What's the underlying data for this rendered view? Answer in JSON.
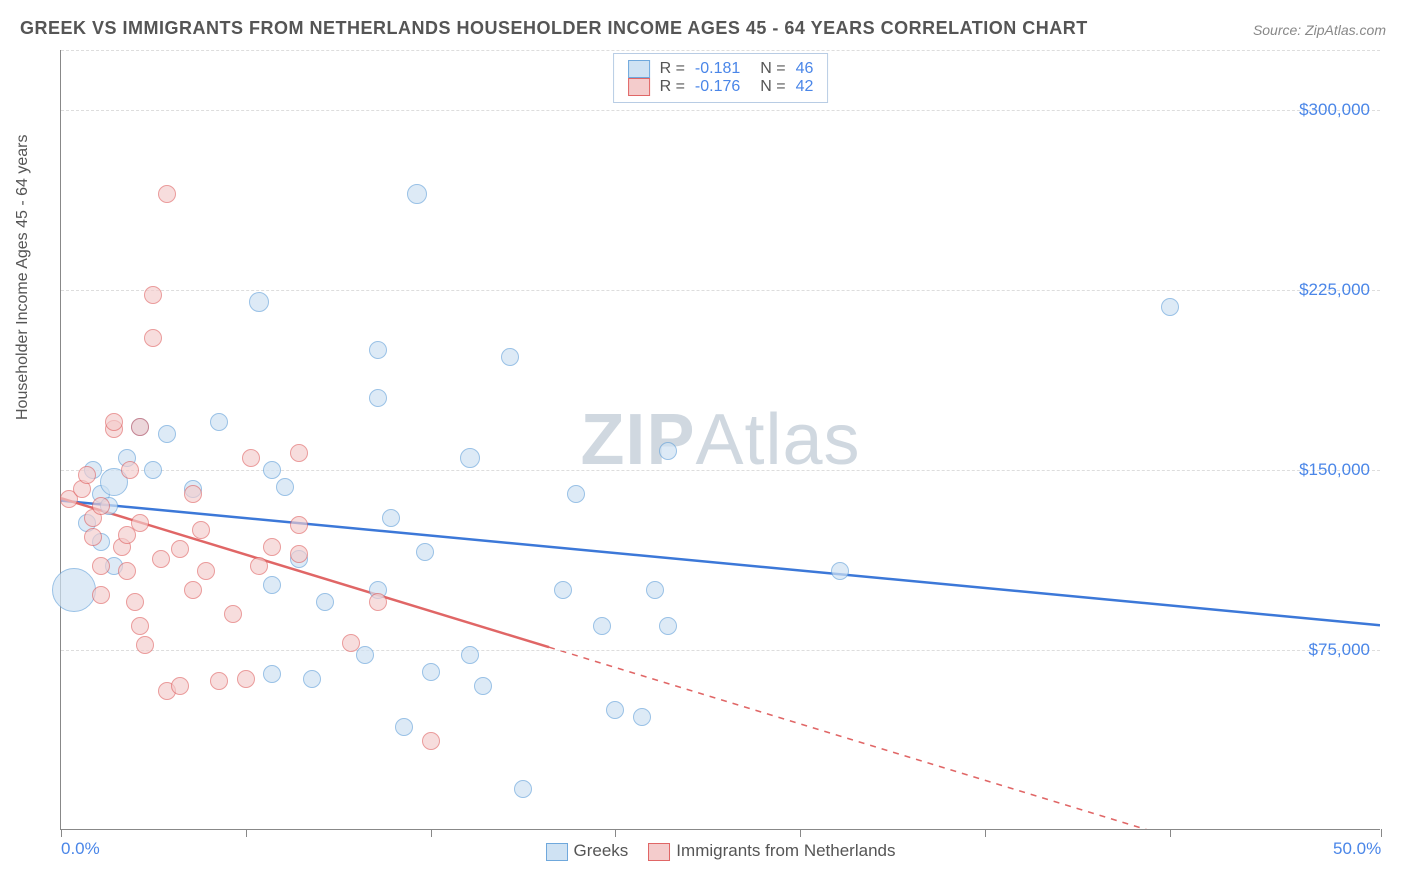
{
  "title": "GREEK VS IMMIGRANTS FROM NETHERLANDS HOUSEHOLDER INCOME AGES 45 - 64 YEARS CORRELATION CHART",
  "source": "Source: ZipAtlas.com",
  "ylabel": "Householder Income Ages 45 - 64 years",
  "watermark_bold": "ZIP",
  "watermark_light": "Atlas",
  "chart": {
    "type": "scatter",
    "plot_bg": "#ffffff",
    "grid_color": "#dddddd",
    "axis_color": "#888888",
    "text_color": "#555555",
    "value_color": "#4a86e8",
    "xlim": [
      0,
      50
    ],
    "ylim": [
      0,
      325000
    ],
    "xticks": [
      0,
      7,
      14,
      21,
      28,
      35,
      42,
      50
    ],
    "xtick_labels": {
      "0": "0.0%",
      "50": "50.0%"
    },
    "yticks": [
      75000,
      150000,
      225000,
      300000,
      325000
    ],
    "ytick_labels": {
      "75000": "$75,000",
      "150000": "$150,000",
      "225000": "$225,000",
      "300000": "$300,000"
    },
    "series": [
      {
        "name": "Greeks",
        "label": "Greeks",
        "fill": "#cfe2f3",
        "stroke": "#6fa8dc",
        "fill_opacity": 0.7,
        "r_stat": "-0.181",
        "n_stat": "46",
        "trend": {
          "x1": 0,
          "y1": 137000,
          "x2": 50,
          "y2": 85000,
          "color": "#3c78d8",
          "width": 2.5,
          "dash_from_x": null
        },
        "points": [
          {
            "x": 0.5,
            "y": 100000,
            "r": 22
          },
          {
            "x": 1.0,
            "y": 128000,
            "r": 9
          },
          {
            "x": 1.2,
            "y": 150000,
            "r": 9
          },
          {
            "x": 1.5,
            "y": 120000,
            "r": 9
          },
          {
            "x": 1.5,
            "y": 140000,
            "r": 9
          },
          {
            "x": 1.8,
            "y": 135000,
            "r": 9
          },
          {
            "x": 2.0,
            "y": 110000,
            "r": 9
          },
          {
            "x": 2.0,
            "y": 145000,
            "r": 14
          },
          {
            "x": 2.5,
            "y": 155000,
            "r": 9
          },
          {
            "x": 3.0,
            "y": 168000,
            "r": 9
          },
          {
            "x": 3.5,
            "y": 150000,
            "r": 9
          },
          {
            "x": 4.0,
            "y": 165000,
            "r": 9
          },
          {
            "x": 5.0,
            "y": 142000,
            "r": 9
          },
          {
            "x": 6.0,
            "y": 170000,
            "r": 9
          },
          {
            "x": 7.5,
            "y": 220000,
            "r": 10
          },
          {
            "x": 8.0,
            "y": 102000,
            "r": 9
          },
          {
            "x": 8.0,
            "y": 65000,
            "r": 9
          },
          {
            "x": 8.0,
            "y": 150000,
            "r": 9
          },
          {
            "x": 8.5,
            "y": 143000,
            "r": 9
          },
          {
            "x": 9.0,
            "y": 113000,
            "r": 9
          },
          {
            "x": 9.5,
            "y": 63000,
            "r": 9
          },
          {
            "x": 10.0,
            "y": 95000,
            "r": 9
          },
          {
            "x": 11.5,
            "y": 73000,
            "r": 9
          },
          {
            "x": 12.0,
            "y": 200000,
            "r": 9
          },
          {
            "x": 12.0,
            "y": 180000,
            "r": 9
          },
          {
            "x": 12.0,
            "y": 100000,
            "r": 9
          },
          {
            "x": 12.5,
            "y": 130000,
            "r": 9
          },
          {
            "x": 13.0,
            "y": 43000,
            "r": 9
          },
          {
            "x": 13.5,
            "y": 265000,
            "r": 10
          },
          {
            "x": 13.8,
            "y": 116000,
            "r": 9
          },
          {
            "x": 14.0,
            "y": 66000,
            "r": 9
          },
          {
            "x": 15.5,
            "y": 155000,
            "r": 10
          },
          {
            "x": 15.5,
            "y": 73000,
            "r": 9
          },
          {
            "x": 16.0,
            "y": 60000,
            "r": 9
          },
          {
            "x": 17.0,
            "y": 197000,
            "r": 9
          },
          {
            "x": 17.5,
            "y": 17000,
            "r": 9
          },
          {
            "x": 19.0,
            "y": 100000,
            "r": 9
          },
          {
            "x": 19.5,
            "y": 140000,
            "r": 9
          },
          {
            "x": 20.5,
            "y": 85000,
            "r": 9
          },
          {
            "x": 21.0,
            "y": 50000,
            "r": 9
          },
          {
            "x": 22.0,
            "y": 47000,
            "r": 9
          },
          {
            "x": 22.5,
            "y": 100000,
            "r": 9
          },
          {
            "x": 23.0,
            "y": 85000,
            "r": 9
          },
          {
            "x": 23.0,
            "y": 158000,
            "r": 9
          },
          {
            "x": 29.5,
            "y": 108000,
            "r": 9
          },
          {
            "x": 42.0,
            "y": 218000,
            "r": 9
          }
        ]
      },
      {
        "name": "Immigrants from Netherlands",
        "label": "Immigrants from Netherlands",
        "fill": "#f4cccc",
        "stroke": "#e06666",
        "fill_opacity": 0.65,
        "r_stat": "-0.176",
        "n_stat": "42",
        "trend": {
          "x1": 0,
          "y1": 138000,
          "x2": 50,
          "y2": -30000,
          "color": "#e06666",
          "width": 2.5,
          "dash_from_x": 18.5
        },
        "points": [
          {
            "x": 0.3,
            "y": 138000,
            "r": 9
          },
          {
            "x": 0.8,
            "y": 142000,
            "r": 9
          },
          {
            "x": 1.0,
            "y": 148000,
            "r": 9
          },
          {
            "x": 1.2,
            "y": 130000,
            "r": 9
          },
          {
            "x": 1.2,
            "y": 122000,
            "r": 9
          },
          {
            "x": 1.5,
            "y": 110000,
            "r": 9
          },
          {
            "x": 1.5,
            "y": 98000,
            "r": 9
          },
          {
            "x": 1.5,
            "y": 135000,
            "r": 9
          },
          {
            "x": 2.0,
            "y": 167000,
            "r": 9
          },
          {
            "x": 2.0,
            "y": 170000,
            "r": 9
          },
          {
            "x": 2.3,
            "y": 118000,
            "r": 9
          },
          {
            "x": 2.5,
            "y": 108000,
            "r": 9
          },
          {
            "x": 2.5,
            "y": 123000,
            "r": 9
          },
          {
            "x": 2.6,
            "y": 150000,
            "r": 9
          },
          {
            "x": 2.8,
            "y": 95000,
            "r": 9
          },
          {
            "x": 3.0,
            "y": 168000,
            "r": 9
          },
          {
            "x": 3.0,
            "y": 128000,
            "r": 9
          },
          {
            "x": 3.0,
            "y": 85000,
            "r": 9
          },
          {
            "x": 3.2,
            "y": 77000,
            "r": 9
          },
          {
            "x": 3.5,
            "y": 223000,
            "r": 9
          },
          {
            "x": 3.5,
            "y": 205000,
            "r": 9
          },
          {
            "x": 3.8,
            "y": 113000,
            "r": 9
          },
          {
            "x": 4.0,
            "y": 58000,
            "r": 9
          },
          {
            "x": 4.0,
            "y": 265000,
            "r": 9
          },
          {
            "x": 4.5,
            "y": 117000,
            "r": 9
          },
          {
            "x": 4.5,
            "y": 60000,
            "r": 9
          },
          {
            "x": 5.0,
            "y": 140000,
            "r": 9
          },
          {
            "x": 5.0,
            "y": 100000,
            "r": 9
          },
          {
            "x": 5.3,
            "y": 125000,
            "r": 9
          },
          {
            "x": 5.5,
            "y": 108000,
            "r": 9
          },
          {
            "x": 6.0,
            "y": 62000,
            "r": 9
          },
          {
            "x": 6.5,
            "y": 90000,
            "r": 9
          },
          {
            "x": 7.0,
            "y": 63000,
            "r": 9
          },
          {
            "x": 7.2,
            "y": 155000,
            "r": 9
          },
          {
            "x": 7.5,
            "y": 110000,
            "r": 9
          },
          {
            "x": 8.0,
            "y": 118000,
            "r": 9
          },
          {
            "x": 9.0,
            "y": 157000,
            "r": 9
          },
          {
            "x": 9.0,
            "y": 127000,
            "r": 9
          },
          {
            "x": 9.0,
            "y": 115000,
            "r": 9
          },
          {
            "x": 11.0,
            "y": 78000,
            "r": 9
          },
          {
            "x": 12.0,
            "y": 95000,
            "r": 9
          },
          {
            "x": 14.0,
            "y": 37000,
            "r": 9
          }
        ]
      }
    ]
  },
  "legend_top_labels": {
    "R": "R =",
    "N": "N ="
  }
}
